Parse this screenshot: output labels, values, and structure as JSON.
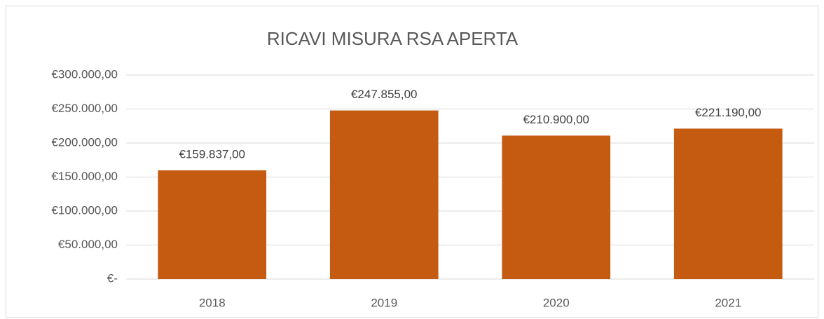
{
  "chart_data": {
    "type": "bar",
    "title": "RICAVI MISURA RSA APERTA",
    "categories": [
      "2018",
      "2019",
      "2020",
      "2021"
    ],
    "values": [
      159837,
      247855,
      210900,
      221190
    ],
    "value_labels": [
      "€159.837,00",
      "€247.855,00",
      "€210.900,00",
      "€221.190,00"
    ],
    "color": "#c55a11",
    "ylim": [
      0,
      300000
    ],
    "yticks": [
      {
        "value": 0,
        "label": "€-"
      },
      {
        "value": 50000,
        "label": "€50.000,00"
      },
      {
        "value": 100000,
        "label": "€100.000,00"
      },
      {
        "value": 150000,
        "label": "€150.000,00"
      },
      {
        "value": 200000,
        "label": "€200.000,00"
      },
      {
        "value": 250000,
        "label": "€250.000,00"
      },
      {
        "value": 300000,
        "label": "€300.000,00"
      }
    ],
    "grid": true
  }
}
